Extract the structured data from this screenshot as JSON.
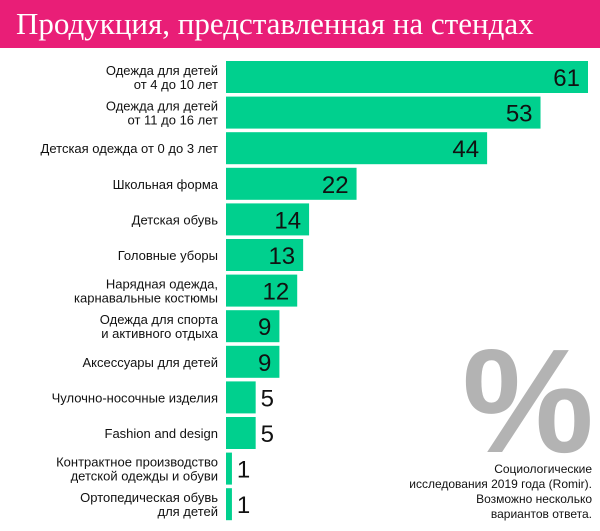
{
  "header": {
    "title": "Продукция, представленная на стендах"
  },
  "colors": {
    "accent": "#e91e77",
    "bar": "#00d08e",
    "percent_sign": "#b3b3b3",
    "text": "#111111"
  },
  "decoration": {
    "percent_sign": "%"
  },
  "chart_data": {
    "type": "bar",
    "orientation": "horizontal",
    "title": "",
    "categories": [
      [
        "Одежда для детей",
        "от 4 до 10 лет"
      ],
      [
        "Одежда для детей",
        "от 11 до 16 лет"
      ],
      [
        "Детская одежда от 0 до 3 лет"
      ],
      [
        "Школьная форма"
      ],
      [
        "Детская обувь"
      ],
      [
        "Головные уборы"
      ],
      [
        "Нарядная одежда,",
        "карнавальные костюмы"
      ],
      [
        "Одежда для спорта",
        "и активного отдыха"
      ],
      [
        "Аксессуары для детей"
      ],
      [
        "Чулочно-носочные изделия"
      ],
      [
        "Fashion and design"
      ],
      [
        "Контрактное производство",
        "детской одежды и обуви"
      ],
      [
        "Ортопедическая обувь",
        "для детей"
      ]
    ],
    "values": [
      61,
      53,
      44,
      22,
      14,
      13,
      12,
      9,
      9,
      5,
      5,
      1,
      1
    ],
    "value_labels": [
      "61",
      "53",
      "44",
      "22",
      "14",
      "13",
      "12",
      "9",
      "9",
      "5",
      "5",
      "1",
      "1"
    ],
    "unit": "%",
    "xlim": [
      0,
      61
    ],
    "grid": false,
    "legend": "none"
  },
  "note": {
    "lines": [
      "Социологические",
      "исследования 2019 года (Romir).",
      "Возможно несколько",
      "вариантов ответа."
    ]
  }
}
